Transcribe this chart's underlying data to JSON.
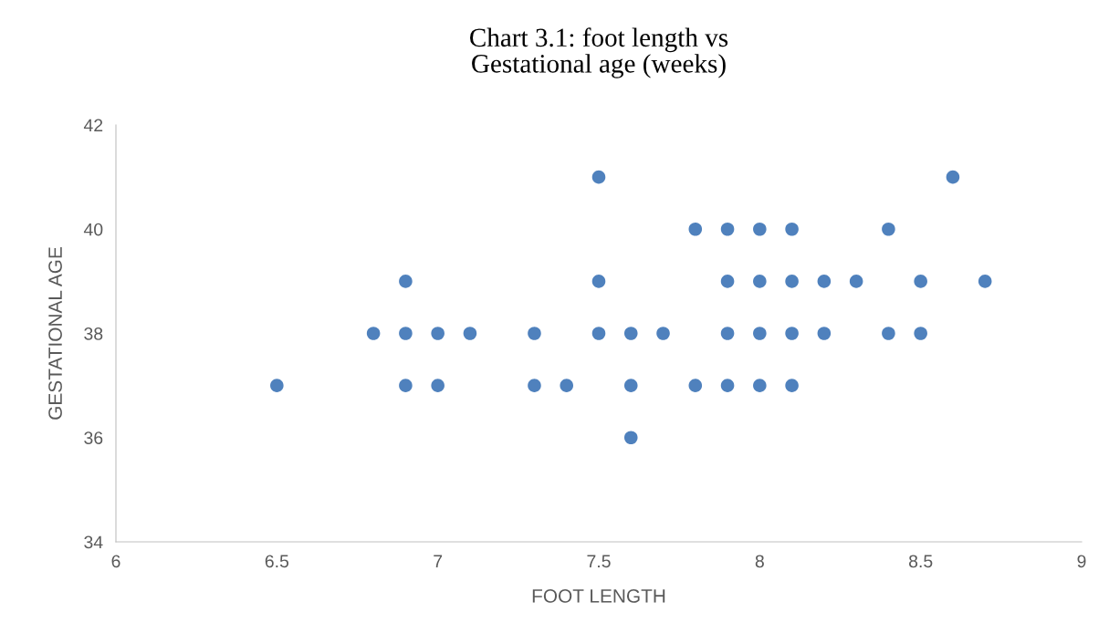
{
  "chart_data": {
    "type": "scatter",
    "title": "Chart 3.1: foot length vs\nGestational age (weeks)",
    "xlabel": "FOOT LENGTH",
    "ylabel": "GESTATIONAL AGE",
    "x": [
      6.5,
      6.8,
      6.9,
      6.9,
      6.9,
      7.0,
      7.0,
      7.1,
      7.3,
      7.3,
      7.4,
      7.5,
      7.5,
      7.5,
      7.6,
      7.6,
      7.6,
      7.7,
      7.8,
      7.8,
      7.9,
      7.9,
      7.9,
      7.9,
      8.0,
      8.0,
      8.0,
      8.0,
      8.1,
      8.1,
      8.1,
      8.1,
      8.2,
      8.2,
      8.3,
      8.4,
      8.4,
      8.5,
      8.5,
      8.6,
      8.7
    ],
    "values": [
      37,
      38,
      39,
      38,
      37,
      38,
      37,
      38,
      38,
      37,
      37,
      41,
      39,
      38,
      38,
      37,
      36,
      38,
      40,
      37,
      40,
      39,
      38,
      37,
      40,
      39,
      38,
      37,
      40,
      39,
      38,
      37,
      39,
      38,
      39,
      40,
      38,
      39,
      38,
      41,
      39
    ],
    "color": "#4f81bd",
    "marker": "circle",
    "grid": false,
    "legend": false,
    "xlim": [
      6,
      9
    ],
    "xticks": [
      6,
      6.5,
      7,
      7.5,
      8,
      8.5,
      9
    ],
    "ylim": [
      34,
      42
    ],
    "yticks": [
      34,
      36,
      38,
      40,
      42
    ]
  }
}
